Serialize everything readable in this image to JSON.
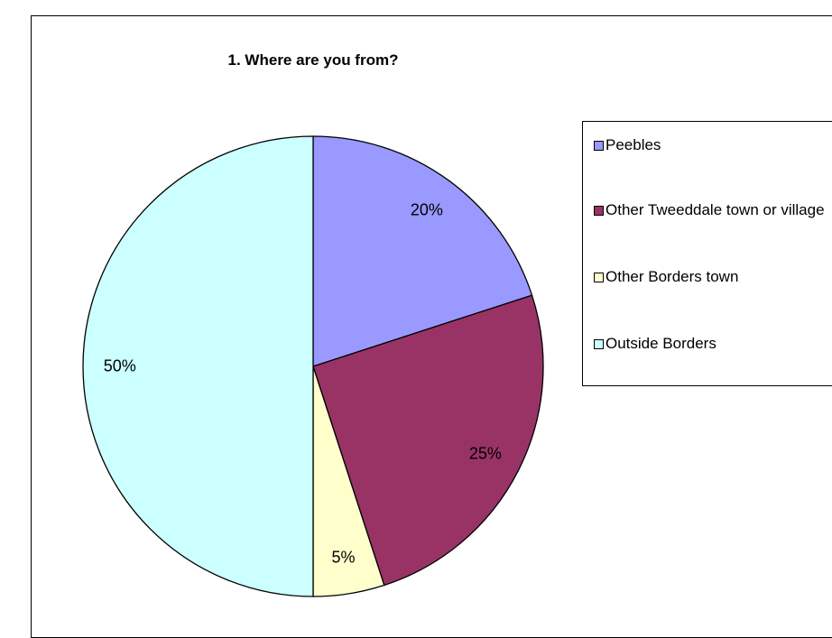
{
  "chart_data": {
    "type": "pie",
    "title": "1. Where are you from?",
    "categories": [
      "Peebles",
      "Other Tweeddale town or village",
      "Other Borders town",
      "Outside Borders"
    ],
    "values": [
      20,
      25,
      5,
      50
    ],
    "data_labels": [
      "20%",
      "25%",
      "5%",
      "50%"
    ],
    "colors": [
      "#9999ff",
      "#993366",
      "#ffffcc",
      "#ccffff"
    ],
    "legend": {
      "position": "right",
      "entries": [
        "Peebles",
        "Other Tweeddale town or village",
        "Other Borders town",
        "Outside Borders"
      ]
    }
  }
}
